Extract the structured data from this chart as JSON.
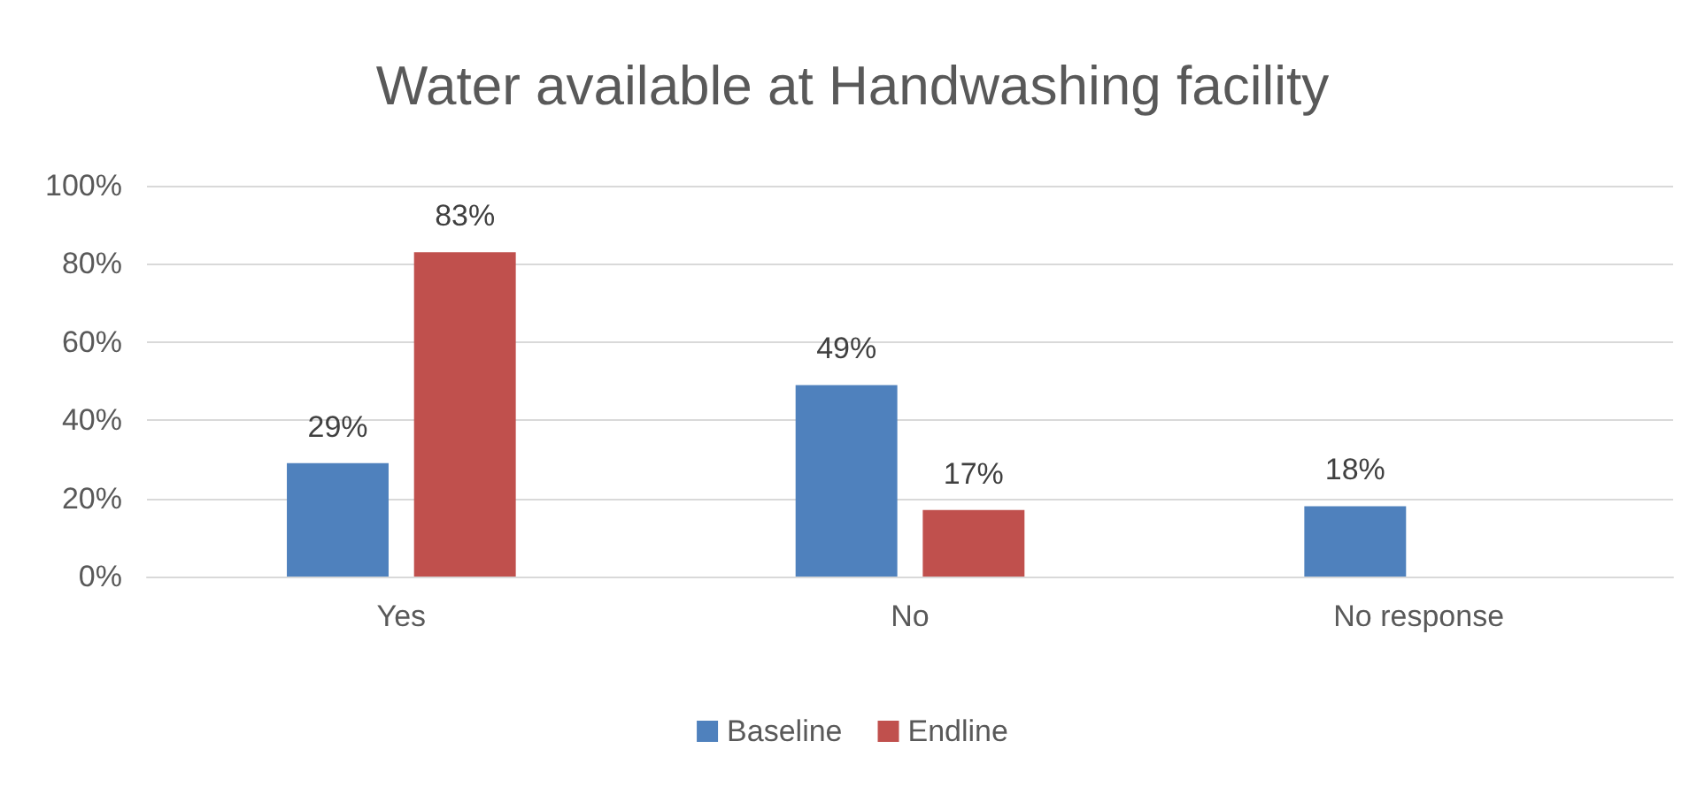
{
  "chart_data": {
    "type": "bar",
    "title": "Water available at Handwashing facility",
    "categories": [
      "Yes",
      "No",
      "No response"
    ],
    "series": [
      {
        "name": "Baseline",
        "color": "#4f81bd",
        "values": [
          29,
          49,
          18
        ],
        "value_labels": [
          "29%",
          "49%",
          "18%"
        ]
      },
      {
        "name": "Endline",
        "color": "#c0504d",
        "values": [
          83,
          17,
          null
        ],
        "value_labels": [
          "83%",
          "17%",
          null
        ]
      }
    ],
    "ylim": [
      0,
      100
    ],
    "yticks": [
      {
        "value": 0,
        "label": "0%"
      },
      {
        "value": 20,
        "label": "20%"
      },
      {
        "value": 40,
        "label": "40%"
      },
      {
        "value": 60,
        "label": "60%"
      },
      {
        "value": 80,
        "label": "80%"
      },
      {
        "value": 100,
        "label": "100%"
      }
    ],
    "grid": "y",
    "legend": "bottom"
  }
}
